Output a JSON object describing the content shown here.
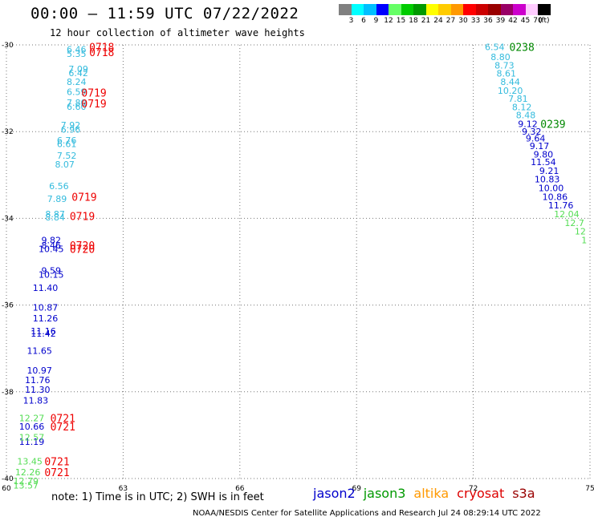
{
  "header": {
    "title": "00:00 – 11:59 UTC 07/22/2022",
    "subtitle": "12 hour collection of altimeter wave heights"
  },
  "colorbar": {
    "colors": [
      "#808080",
      "#00ffff",
      "#00bfff",
      "#0000ff",
      "#66ff66",
      "#00cc00",
      "#009900",
      "#ffff00",
      "#ffcc00",
      "#ff9900",
      "#ff0000",
      "#cc0000",
      "#990000",
      "#990066",
      "#cc00cc",
      "#ffccff",
      "#000000"
    ],
    "labels": [
      "3",
      "6",
      "9",
      "12",
      "15",
      "18",
      "21",
      "24",
      "27",
      "30",
      "33",
      "36",
      "39",
      "42",
      "45",
      "70",
      "(ft)"
    ]
  },
  "footer": {
    "note": "note:  1) Time is in UTC; 2) SWH is in feet",
    "credit": "NOAA/NESDIS Center for Satellite Applications and Research    Jul 24 08:29:14 UTC 2022"
  },
  "legend": [
    {
      "name": "jason2",
      "color": "#0000cc"
    },
    {
      "name": "jason3",
      "color": "#009900"
    },
    {
      "name": "altika",
      "color": "#ff9900"
    },
    {
      "name": "cryosat",
      "color": "#dd0000"
    },
    {
      "name": "s3a",
      "color": "#990000"
    }
  ],
  "chart_data": {
    "type": "scatter",
    "xlim": [
      60,
      75
    ],
    "ylim": [
      -40,
      -30
    ],
    "xticks": [
      "60",
      "63",
      "66",
      "69",
      "72",
      "75"
    ],
    "yticks": [
      "-30",
      "-32",
      "-34",
      "-36",
      "-38",
      "-40"
    ],
    "grid": true,
    "series": [
      {
        "color": "#33bbdd",
        "points": [
          {
            "x": 61.8,
            "y": -30.1,
            "label": "6.46"
          },
          {
            "x": 61.8,
            "y": -30.2,
            "label": "5.35"
          },
          {
            "x": 61.85,
            "y": -30.55,
            "label": "7.09"
          },
          {
            "x": 61.85,
            "y": -30.65,
            "label": "6.42"
          },
          {
            "x": 61.8,
            "y": -30.85,
            "label": "8.24"
          },
          {
            "x": 61.8,
            "y": -31.08,
            "label": "6.59"
          },
          {
            "x": 61.8,
            "y": -31.33,
            "label": "7.80"
          },
          {
            "x": 61.8,
            "y": -31.42,
            "label": "6.60"
          },
          {
            "x": 61.65,
            "y": -31.85,
            "label": "7.92"
          },
          {
            "x": 61.65,
            "y": -31.95,
            "label": "6.96"
          },
          {
            "x": 61.55,
            "y": -32.2,
            "label": "6.76"
          },
          {
            "x": 61.55,
            "y": -32.28,
            "label": "6.61"
          },
          {
            "x": 61.55,
            "y": -32.55,
            "label": "7.52"
          },
          {
            "x": 61.5,
            "y": -32.75,
            "label": "8.07"
          },
          {
            "x": 61.35,
            "y": -33.25,
            "label": "6.56"
          },
          {
            "x": 61.3,
            "y": -33.55,
            "label": "7.89"
          },
          {
            "x": 61.25,
            "y": -33.9,
            "label": "8.87"
          },
          {
            "x": 61.25,
            "y": -33.97,
            "label": "8.84"
          },
          {
            "x": 72.55,
            "y": -30.05,
            "label": "6.54"
          },
          {
            "x": 72.7,
            "y": -30.28,
            "label": "8.80"
          },
          {
            "x": 72.8,
            "y": -30.47,
            "label": "8.73"
          },
          {
            "x": 72.85,
            "y": -30.66,
            "label": "8.61"
          },
          {
            "x": 72.95,
            "y": -30.85,
            "label": "8.44"
          },
          {
            "x": 72.95,
            "y": -31.05,
            "label": "10.20"
          },
          {
            "x": 73.15,
            "y": -31.24,
            "label": "7.81"
          },
          {
            "x": 73.25,
            "y": -31.43,
            "label": "8.12"
          },
          {
            "x": 73.35,
            "y": -31.62,
            "label": "8.48"
          }
        ]
      },
      {
        "color": "#0000cc",
        "points": [
          {
            "x": 73.4,
            "y": -31.82,
            "label": "9.12"
          },
          {
            "x": 73.5,
            "y": -32.0,
            "label": "9.32"
          },
          {
            "x": 73.6,
            "y": -32.15,
            "label": "9.64"
          },
          {
            "x": 73.7,
            "y": -32.33,
            "label": "9.17"
          },
          {
            "x": 73.8,
            "y": -32.52,
            "label": "9.80"
          },
          {
            "x": 73.8,
            "y": -32.7,
            "label": "11.54"
          },
          {
            "x": 73.95,
            "y": -32.9,
            "label": "9.21"
          },
          {
            "x": 73.9,
            "y": -33.1,
            "label": "10.83"
          },
          {
            "x": 74.0,
            "y": -33.3,
            "label": "10.00"
          },
          {
            "x": 74.1,
            "y": -33.5,
            "label": "10.86"
          },
          {
            "x": 74.25,
            "y": -33.7,
            "label": "11.76"
          },
          {
            "x": 61.15,
            "y": -34.5,
            "label": "9.82"
          },
          {
            "x": 61.15,
            "y": -34.62,
            "label": "8.46"
          },
          {
            "x": 61.15,
            "y": -34.7,
            "label": "10.45"
          },
          {
            "x": 61.15,
            "y": -35.2,
            "label": "9.59"
          },
          {
            "x": 61.15,
            "y": -35.3,
            "label": "10.15"
          },
          {
            "x": 61.0,
            "y": -35.6,
            "label": "11.40"
          },
          {
            "x": 61.0,
            "y": -36.05,
            "label": "10.87"
          },
          {
            "x": 61.0,
            "y": -36.3,
            "label": "11.26"
          },
          {
            "x": 60.95,
            "y": -36.6,
            "label": "11.16"
          },
          {
            "x": 60.95,
            "y": -36.65,
            "label": "11.42"
          },
          {
            "x": 60.85,
            "y": -37.05,
            "label": "11.65"
          },
          {
            "x": 60.85,
            "y": -37.5,
            "label": "10.97"
          },
          {
            "x": 60.8,
            "y": -37.73,
            "label": "11.76"
          },
          {
            "x": 60.8,
            "y": -37.95,
            "label": "11.30"
          },
          {
            "x": 60.75,
            "y": -38.2,
            "label": "11.83"
          },
          {
            "x": 60.65,
            "y": -38.8,
            "label": "10.66"
          },
          {
            "x": 60.65,
            "y": -39.15,
            "label": "11.19"
          }
        ]
      },
      {
        "color": "#55dd55",
        "points": [
          {
            "x": 74.4,
            "y": -33.9,
            "label": "12.04"
          },
          {
            "x": 74.6,
            "y": -34.1,
            "label": "12.7"
          },
          {
            "x": 74.75,
            "y": -34.3,
            "label": "12"
          },
          {
            "x": 74.85,
            "y": -34.5,
            "label": "1"
          },
          {
            "x": 60.65,
            "y": -38.6,
            "label": "12.27"
          },
          {
            "x": 60.65,
            "y": -39.05,
            "label": "12.57"
          },
          {
            "x": 60.6,
            "y": -39.6,
            "label": "13.45"
          },
          {
            "x": 60.55,
            "y": -39.85,
            "label": "12.26"
          },
          {
            "x": 60.5,
            "y": -40.06,
            "label": "12.79"
          },
          {
            "x": 60.5,
            "y": -40.16,
            "label": "13.57"
          }
        ]
      }
    ],
    "time_labels": [
      {
        "x": 62.45,
        "y": -30.05,
        "text": "0718",
        "color": "#ee0000"
      },
      {
        "x": 62.45,
        "y": -30.17,
        "text": "0718",
        "color": "#ee0000"
      },
      {
        "x": 62.25,
        "y": -31.1,
        "text": "0719",
        "color": "#ee0000"
      },
      {
        "x": 62.25,
        "y": -31.35,
        "text": "0719",
        "color": "#ee0000"
      },
      {
        "x": 62.0,
        "y": -33.5,
        "text": "0719",
        "color": "#ee0000"
      },
      {
        "x": 61.95,
        "y": -33.95,
        "text": "0719",
        "color": "#ee0000"
      },
      {
        "x": 61.95,
        "y": -34.62,
        "text": "0720",
        "color": "#ee0000"
      },
      {
        "x": 61.95,
        "y": -34.7,
        "text": "0720",
        "color": "#ee0000"
      },
      {
        "x": 61.45,
        "y": -38.6,
        "text": "0721",
        "color": "#ee0000"
      },
      {
        "x": 61.45,
        "y": -38.8,
        "text": "0721",
        "color": "#ee0000"
      },
      {
        "x": 61.3,
        "y": -39.6,
        "text": "0721",
        "color": "#ee0000"
      },
      {
        "x": 61.3,
        "y": -39.85,
        "text": "0721",
        "color": "#ee0000"
      },
      {
        "x": 73.25,
        "y": -30.05,
        "text": "0238",
        "color": "#008800"
      },
      {
        "x": 74.05,
        "y": -31.82,
        "text": "0239",
        "color": "#008800"
      }
    ]
  }
}
